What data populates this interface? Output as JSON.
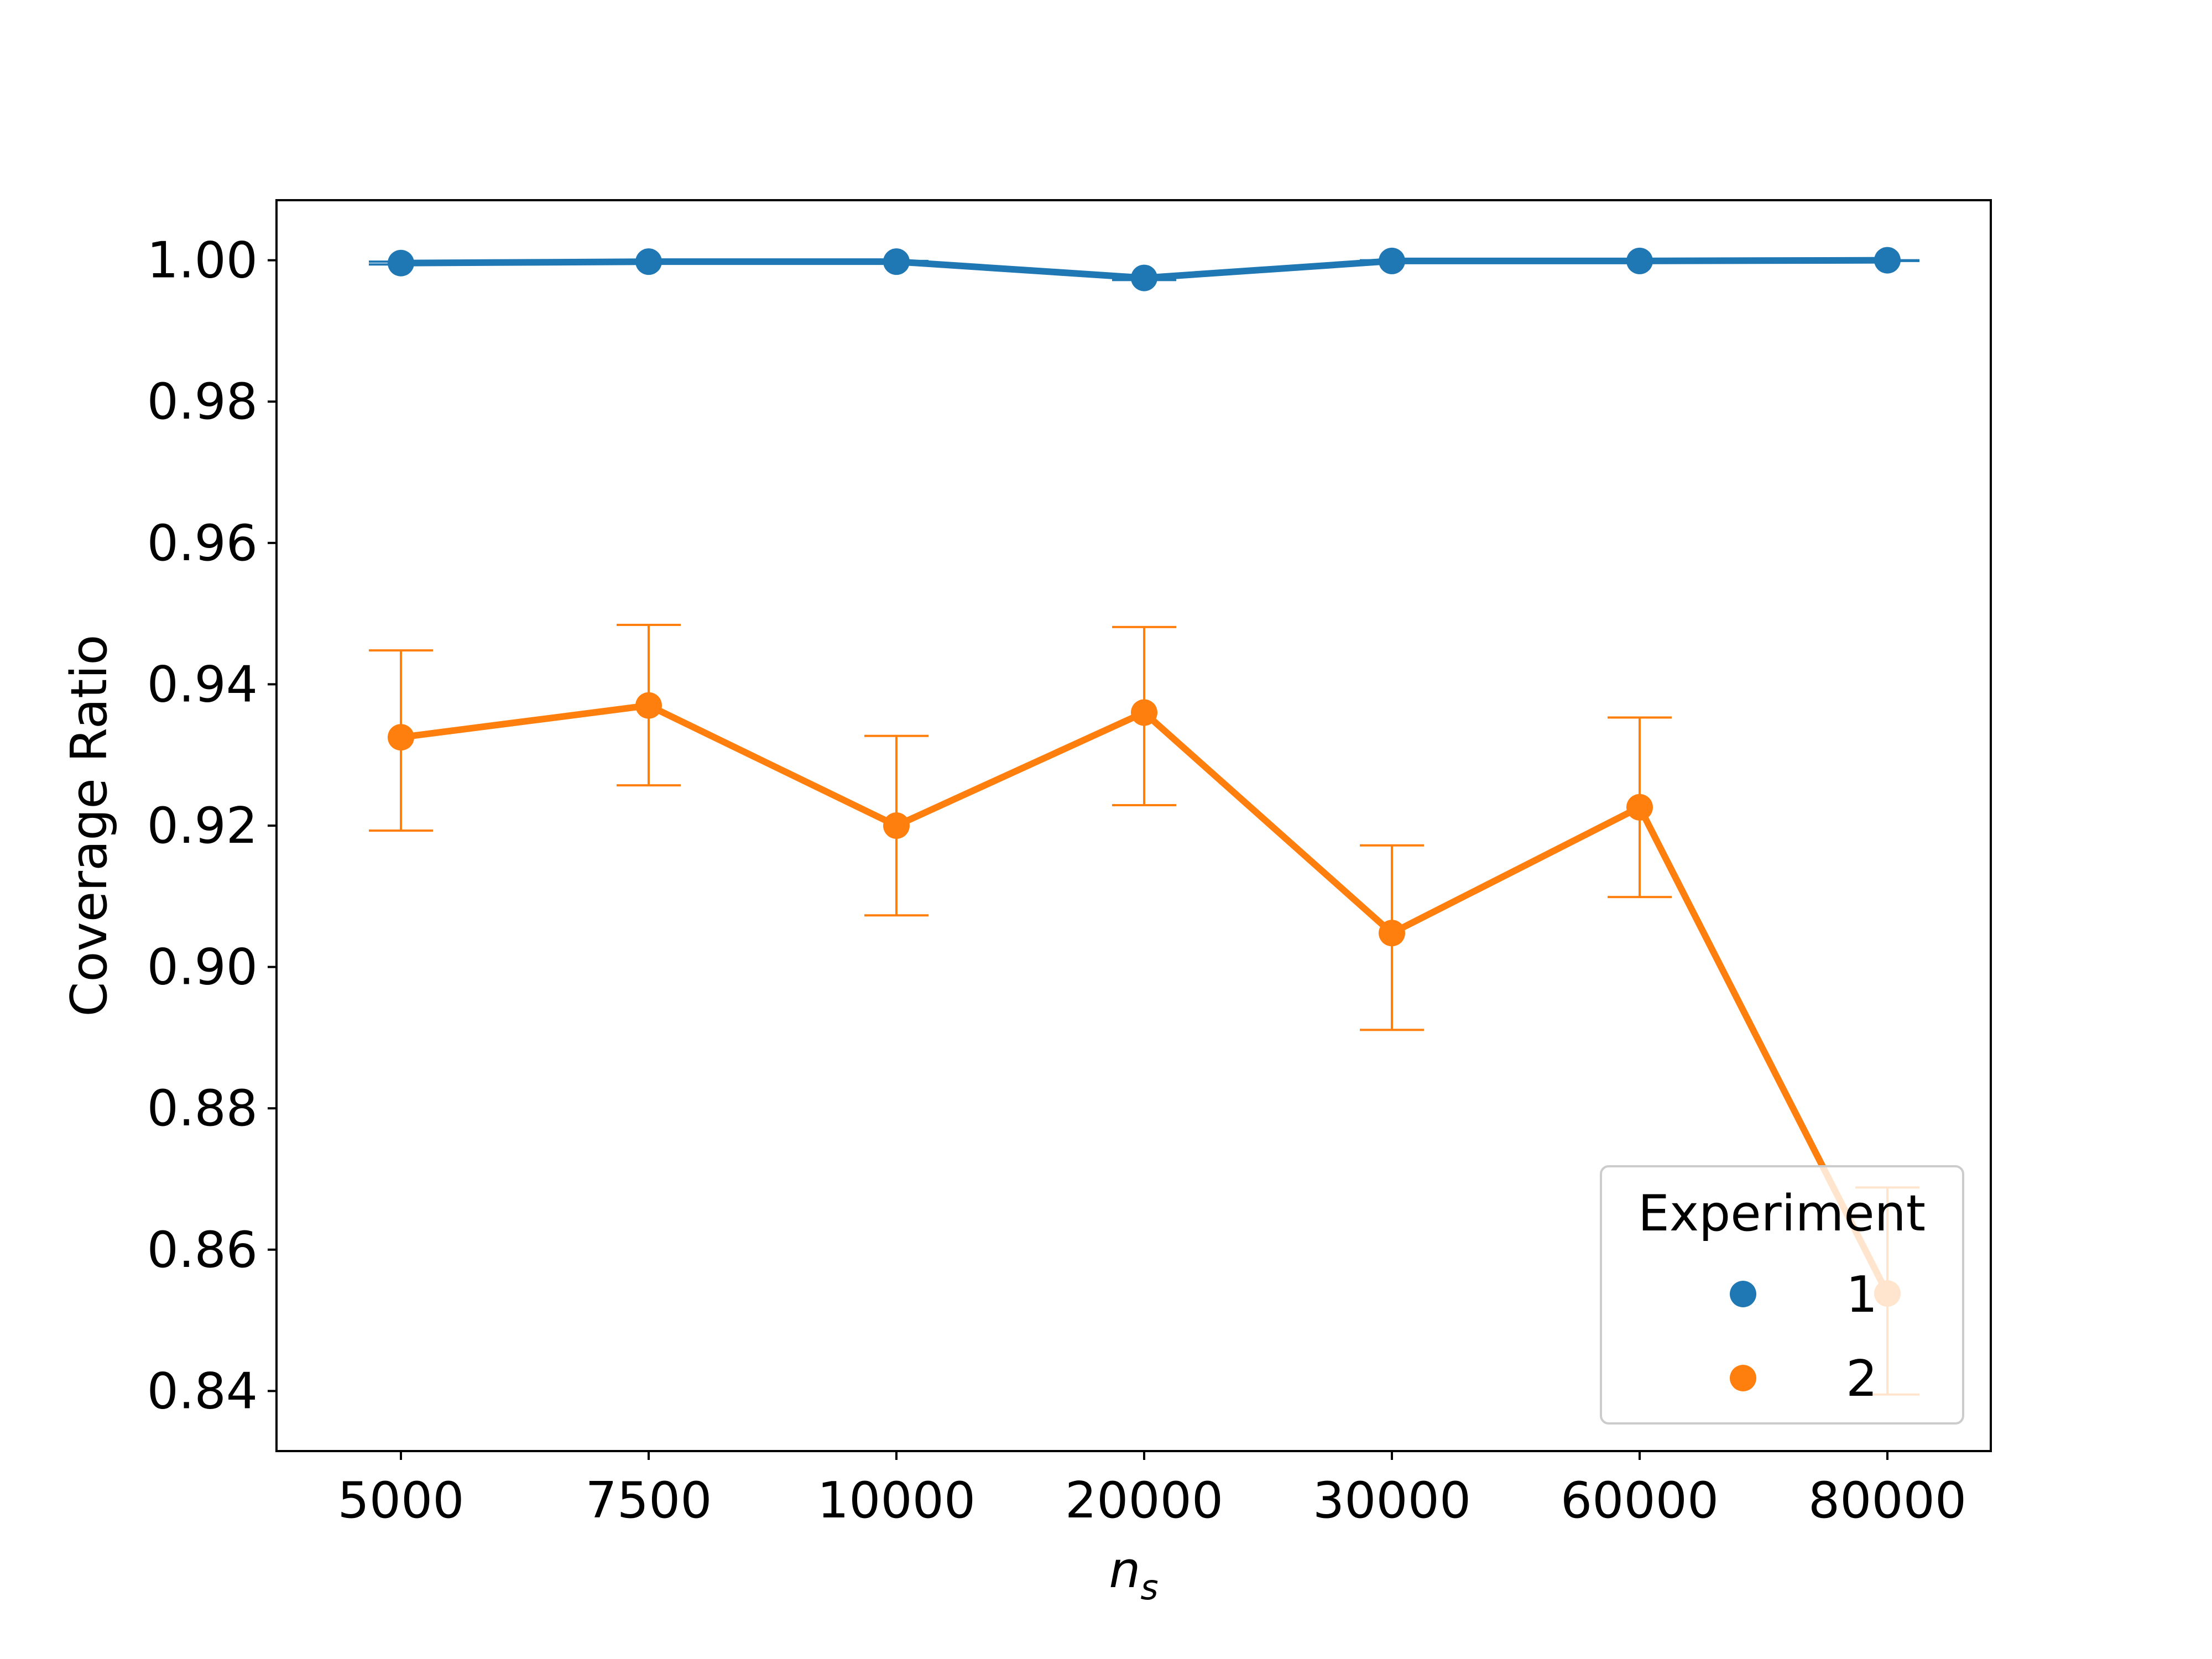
{
  "chart_data": {
    "type": "line",
    "title": "",
    "xlabel_base": "n",
    "xlabel_sub": "s",
    "ylabel": "Coverage Ratio",
    "categories": [
      "5000",
      "7500",
      "10000",
      "20000",
      "30000",
      "60000",
      "80000"
    ],
    "ylim": [
      0.8315,
      1.0085
    ],
    "yticks": [
      0.84,
      0.86,
      0.88,
      0.9,
      0.92,
      0.94,
      0.96,
      0.98,
      1.0
    ],
    "ytick_labels": [
      "0.84",
      "0.86",
      "0.88",
      "0.90",
      "0.92",
      "0.94",
      "0.96",
      "0.98",
      "1.00"
    ],
    "grid": false,
    "legend": {
      "title": "Experiment",
      "placement": "lower-right"
    },
    "series": [
      {
        "name": "1",
        "color": "#1f77b4",
        "values": [
          0.9996,
          0.9998,
          0.9998,
          0.9975,
          0.9999,
          0.9999,
          1.0
        ],
        "err_low": [
          0.9994,
          0.9996,
          0.9996,
          0.9972,
          0.9998,
          0.9998,
          0.9999
        ],
        "err_high": [
          0.9998,
          0.9999,
          0.9999,
          0.9978,
          1.0,
          1.0,
          1.0
        ]
      },
      {
        "name": "2",
        "color": "#ff7f0e",
        "values": [
          0.9325,
          0.937,
          0.92,
          0.936,
          0.9048,
          0.9226,
          0.8538
        ],
        "err_low": [
          0.9193,
          0.9257,
          0.9073,
          0.9229,
          0.8911,
          0.9099,
          0.8395
        ],
        "err_high": [
          0.9448,
          0.9484,
          0.9327,
          0.9481,
          0.9172,
          0.9353,
          0.8688
        ]
      }
    ]
  }
}
